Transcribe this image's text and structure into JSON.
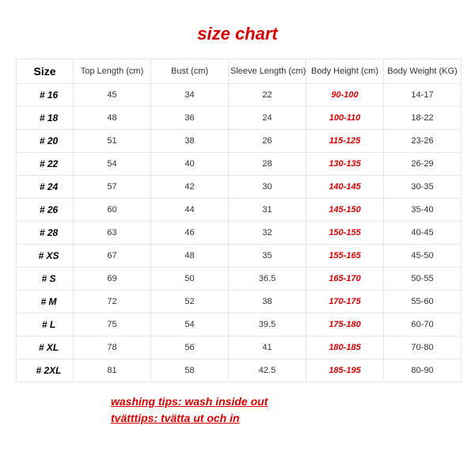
{
  "title": "size chart",
  "title_color": "#d40000",
  "title_fontsize": 22,
  "background_color": "#ffffff",
  "border_color": "#e6e6e6",
  "text_color": "#333333",
  "highlight_color": "#d40000",
  "columns": [
    "Size",
    "Top Length (cm)",
    "Bust (cm)",
    "Sleeve Length (cm)",
    "Body Height (cm)",
    "Body Weight (KG)"
  ],
  "rows": [
    {
      "size": "# 16",
      "top": "45",
      "bust": "34",
      "sleeve": "22",
      "height": "90-100",
      "weight": "14-17"
    },
    {
      "size": "# 18",
      "top": "48",
      "bust": "36",
      "sleeve": "24",
      "height": "100-110",
      "weight": "18-22"
    },
    {
      "size": "# 20",
      "top": "51",
      "bust": "38",
      "sleeve": "26",
      "height": "115-125",
      "weight": "23-26"
    },
    {
      "size": "# 22",
      "top": "54",
      "bust": "40",
      "sleeve": "28",
      "height": "130-135",
      "weight": "26-29"
    },
    {
      "size": "# 24",
      "top": "57",
      "bust": "42",
      "sleeve": "30",
      "height": "140-145",
      "weight": "30-35"
    },
    {
      "size": "# 26",
      "top": "60",
      "bust": "44",
      "sleeve": "31",
      "height": "145-150",
      "weight": "35-40"
    },
    {
      "size": "# 28",
      "top": "63",
      "bust": "46",
      "sleeve": "32",
      "height": "150-155",
      "weight": "40-45"
    },
    {
      "size": "# XS",
      "top": "67",
      "bust": "48",
      "sleeve": "35",
      "height": "155-165",
      "weight": "45-50"
    },
    {
      "size": "# S",
      "top": "69",
      "bust": "50",
      "sleeve": "36.5",
      "height": "165-170",
      "weight": "50-55"
    },
    {
      "size": "# M",
      "top": "72",
      "bust": "52",
      "sleeve": "38",
      "height": "170-175",
      "weight": "55-60"
    },
    {
      "size": "# L",
      "top": "75",
      "bust": "54",
      "sleeve": "39.5",
      "height": "175-180",
      "weight": "60-70"
    },
    {
      "size": "# XL",
      "top": "78",
      "bust": "56",
      "sleeve": "41",
      "height": "180-185",
      "weight": "70-80"
    },
    {
      "size": "# 2XL",
      "top": "81",
      "bust": "58",
      "sleeve": "42.5",
      "height": "185-195",
      "weight": "80-90"
    }
  ],
  "tips": [
    "washing tips: wash inside out",
    "tvätttips: tvätta ut och in"
  ]
}
